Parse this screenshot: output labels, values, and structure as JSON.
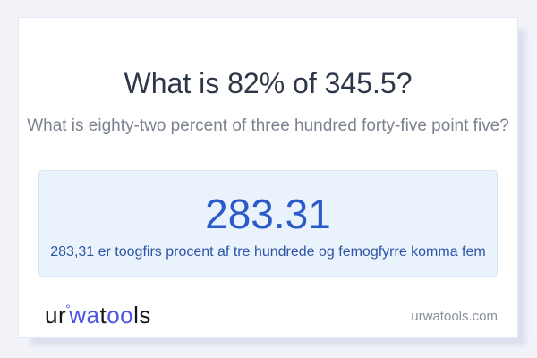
{
  "question": {
    "title": "What is 82% of 345.5?",
    "subtitle": "What is eighty-two percent of three hundred forty-five point five?"
  },
  "result": {
    "value": "283.31",
    "description": "283,31 er toogfirs procent af tre hundrede og femogfyrre komma fem"
  },
  "footer": {
    "logo": {
      "seg_ur": "ur",
      "ring": "°",
      "seg_wa": "wa",
      "seg_t": "t",
      "seg_oo": "oo",
      "seg_ls": "ls"
    },
    "website": "urwatools.com"
  },
  "colors": {
    "page_bg": "#f2f3f9",
    "card_bg": "#ffffff",
    "card_border": "#e6e9f4",
    "card_shadow": "#d9dfec",
    "title": "#2d3748",
    "subtitle": "#7b8290",
    "result_box_bg": "#eaf2fc",
    "result_box_border": "#d7e7f6",
    "result_value": "#2b5ac9",
    "result_description": "#2c55a5",
    "logo_dark": "#15171c",
    "logo_blue": "#4a55e5",
    "website_text": "#8a909c"
  }
}
